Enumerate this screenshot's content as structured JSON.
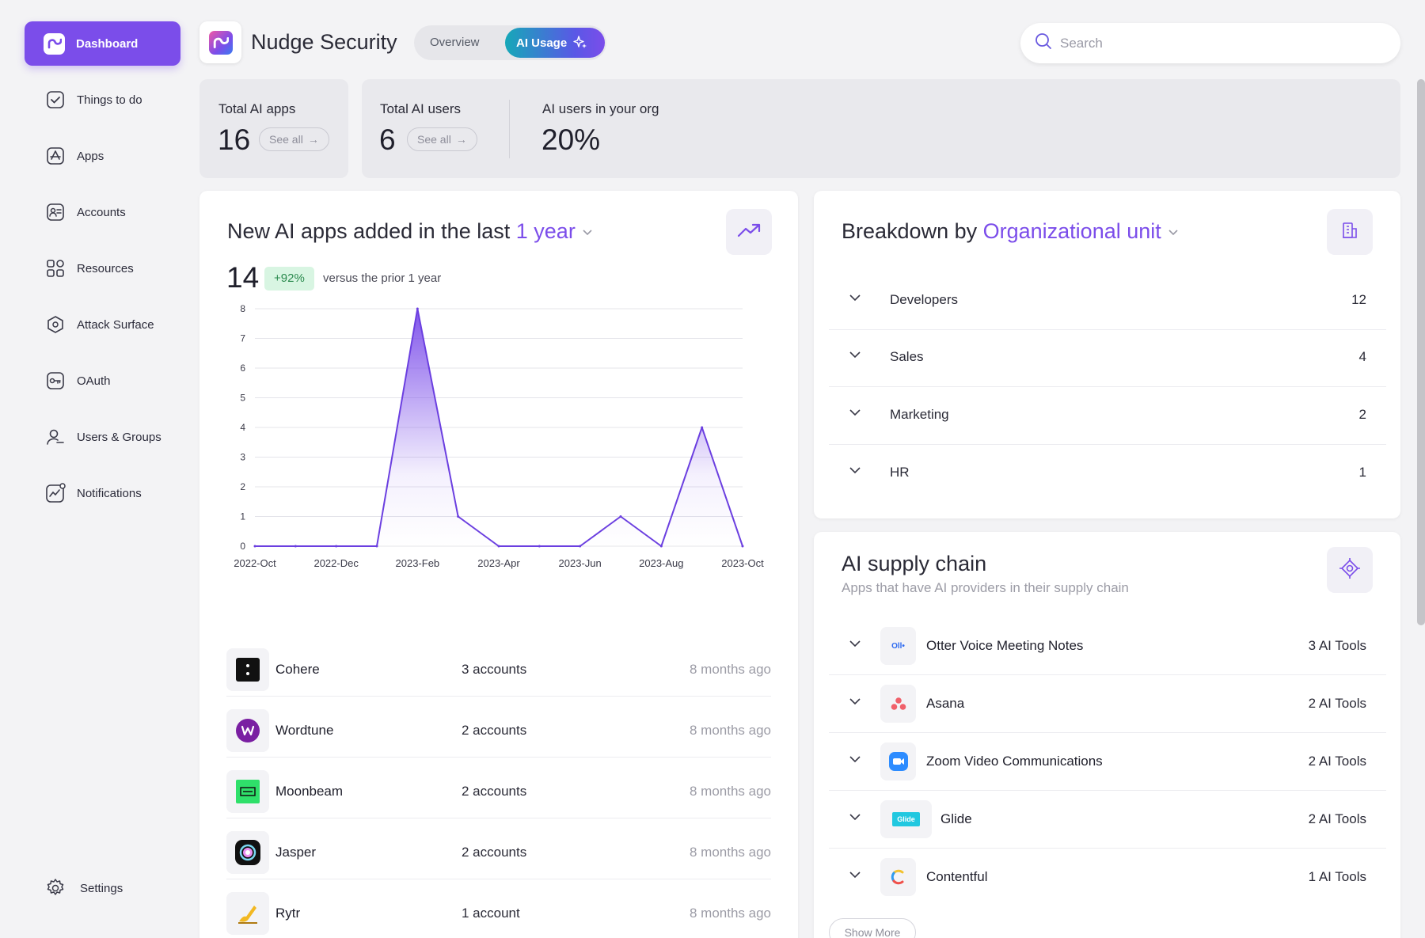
{
  "sidebar": {
    "dashboard_label": "Dashboard",
    "items": [
      {
        "label": "Things to do",
        "icon": "checkbox-icon"
      },
      {
        "label": "Apps",
        "icon": "app-store-icon"
      },
      {
        "label": "Accounts",
        "icon": "id-card-icon"
      },
      {
        "label": "Resources",
        "icon": "grid-icon"
      },
      {
        "label": "Attack Surface",
        "icon": "shield-hex-icon"
      },
      {
        "label": "OAuth",
        "icon": "key-icon"
      },
      {
        "label": "Users & Groups",
        "icon": "users-icon"
      },
      {
        "label": "Notifications",
        "icon": "activity-bell-icon"
      }
    ],
    "settings_label": "Settings"
  },
  "header": {
    "brand": "Nudge Security",
    "tabs": {
      "overview": "Overview",
      "ai_usage": "AI Usage"
    },
    "search_placeholder": "Search"
  },
  "stats": {
    "total_ai_apps": {
      "label": "Total AI apps",
      "value": "16",
      "link": "See all"
    },
    "total_ai_users": {
      "label": "Total AI users",
      "value": "6",
      "link": "See all"
    },
    "ai_users_org": {
      "label": "AI users in your org",
      "value": "20%"
    }
  },
  "new_apps": {
    "title_prefix": "New AI apps added in the last",
    "title_period": "1 year",
    "count": "14",
    "change": "+92%",
    "comparison": "versus the prior 1 year",
    "apps": [
      {
        "name": "Cohere",
        "accounts": "3 accounts",
        "added": "8 months ago",
        "icon": "cohere-icon"
      },
      {
        "name": "Wordtune",
        "accounts": "2 accounts",
        "added": "8 months ago",
        "icon": "wordtune-icon"
      },
      {
        "name": "Moonbeam",
        "accounts": "2 accounts",
        "added": "8 months ago",
        "icon": "moonbeam-icon"
      },
      {
        "name": "Jasper",
        "accounts": "2 accounts",
        "added": "8 months ago",
        "icon": "jasper-icon"
      },
      {
        "name": "Rytr",
        "accounts": "1 account",
        "added": "8 months ago",
        "icon": "rytr-icon"
      }
    ]
  },
  "chart_data": {
    "type": "area",
    "title": "",
    "xlabel": "",
    "ylabel": "",
    "x": [
      "2022-Oct",
      "2022-Nov",
      "2022-Dec",
      "2023-Jan",
      "2023-Feb",
      "2023-Mar",
      "2023-Apr",
      "2023-May",
      "2023-Jun",
      "2023-Jul",
      "2023-Aug",
      "2023-Sep",
      "2023-Oct"
    ],
    "x_tick_labels": [
      "2022-Oct",
      "2022-Dec",
      "2023-Feb",
      "2023-Apr",
      "2023-Jun",
      "2023-Aug",
      "2023-Oct"
    ],
    "series": [
      {
        "values": [
          0,
          0,
          0,
          0,
          8,
          1,
          0,
          0,
          0,
          1,
          0,
          4,
          0
        ]
      }
    ],
    "ylim": [
      0,
      8
    ],
    "y_ticks": [
      0,
      1,
      2,
      3,
      4,
      5,
      6,
      7,
      8
    ],
    "grid": true,
    "line_color": "#6b3fe0",
    "fill_color": "#7b4dea"
  },
  "breakdown": {
    "title_prefix": "Breakdown by",
    "title_group": "Organizational unit",
    "rows": [
      {
        "name": "Developers",
        "count": "12"
      },
      {
        "name": "Sales",
        "count": "4"
      },
      {
        "name": "Marketing",
        "count": "2"
      },
      {
        "name": "HR",
        "count": "1"
      }
    ]
  },
  "supply_chain": {
    "title": "AI supply chain",
    "subtitle": "Apps that have AI providers in their supply chain",
    "rows": [
      {
        "name": "Otter Voice Meeting Notes",
        "tools": "3 AI Tools",
        "icon": "otter-icon",
        "icon_text": "Oll•"
      },
      {
        "name": "Asana",
        "tools": "2 AI Tools",
        "icon": "asana-icon"
      },
      {
        "name": "Zoom Video Communications",
        "tools": "2 AI Tools",
        "icon": "zoom-icon"
      },
      {
        "name": "Glide",
        "tools": "2 AI Tools",
        "icon": "glide-icon",
        "icon_text": "Glide"
      },
      {
        "name": "Contentful",
        "tools": "1 AI Tools",
        "icon": "contentful-icon"
      }
    ],
    "show_more": "Show More"
  },
  "colors": {
    "accent": "#7b4dea",
    "teal": "#16a8b8",
    "positive": "#2b8a4e"
  }
}
